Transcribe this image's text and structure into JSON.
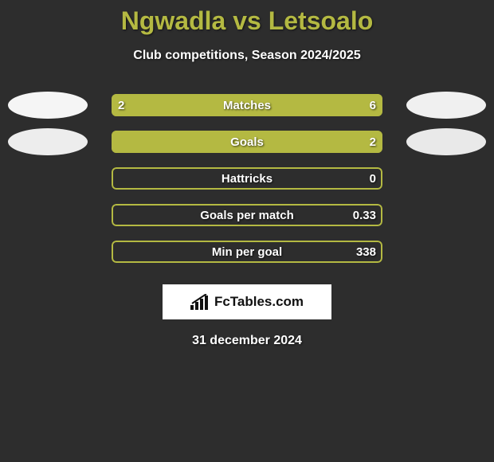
{
  "title": "Ngwadla vs Letsoalo",
  "subtitle": "Club competitions, Season 2024/2025",
  "date": "31 december 2024",
  "logo_text": "FcTables.com",
  "colors": {
    "background": "#2d2d2d",
    "accent": "#b4b942",
    "text": "#ffffff",
    "logo_bg": "#ffffff",
    "logo_text": "#111111",
    "ellipse_left_1": "#f5f5f5",
    "ellipse_right_1": "#f0f0f0",
    "ellipse_left_2": "#ededed",
    "ellipse_right_2": "#e9e9e9"
  },
  "stats": [
    {
      "label": "Matches",
      "left_value": "2",
      "right_value": "6",
      "left_pct": 25,
      "right_pct": 75,
      "show_ellipse": true,
      "ellipse_left_color": "#f5f5f5",
      "ellipse_right_color": "#f0f0f0"
    },
    {
      "label": "Goals",
      "left_value": "",
      "right_value": "2",
      "left_pct": 0,
      "right_pct": 100,
      "show_ellipse": true,
      "ellipse_left_color": "#ededed",
      "ellipse_right_color": "#e9e9e9"
    },
    {
      "label": "Hattricks",
      "left_value": "",
      "right_value": "0",
      "left_pct": 0,
      "right_pct": 0,
      "show_ellipse": false
    },
    {
      "label": "Goals per match",
      "left_value": "",
      "right_value": "0.33",
      "left_pct": 0,
      "right_pct": 0,
      "show_ellipse": false
    },
    {
      "label": "Min per goal",
      "left_value": "",
      "right_value": "338",
      "left_pct": 0,
      "right_pct": 0,
      "show_ellipse": false
    }
  ]
}
